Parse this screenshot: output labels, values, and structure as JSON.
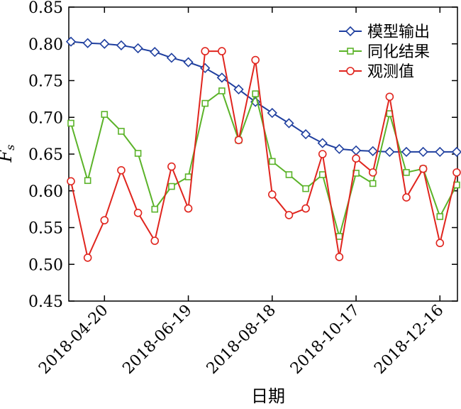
{
  "chart_data": {
    "type": "line",
    "xlabel": "日期",
    "ylabel": "Fs",
    "ylim": [
      0.45,
      0.85
    ],
    "y_ticks": [
      "0.45",
      "0.50",
      "0.55",
      "0.60",
      "0.65",
      "0.70",
      "0.75",
      "0.80",
      "0.85"
    ],
    "x_ticks": [
      "2018-04-20",
      "2018-06-19",
      "2018-08-18",
      "2018-10-17",
      "2018-12-16"
    ],
    "x_tick_index": [
      2,
      7,
      12,
      17,
      22
    ],
    "legend_position": "top-right",
    "series": [
      {
        "name": "模型输出",
        "color": "#1f3f9f",
        "marker": "diamond",
        "values": [
          0.803,
          0.801,
          0.8,
          0.798,
          0.794,
          0.789,
          0.781,
          0.775,
          0.767,
          0.754,
          0.738,
          0.721,
          0.706,
          0.692,
          0.677,
          0.665,
          0.657,
          0.655,
          0.654,
          0.653,
          0.653,
          0.653,
          0.653,
          0.653
        ]
      },
      {
        "name": "同化结果",
        "color": "#5bb329",
        "marker": "square",
        "values": [
          0.692,
          0.614,
          0.704,
          0.681,
          0.651,
          0.575,
          0.606,
          0.619,
          0.719,
          0.736,
          0.669,
          0.732,
          0.64,
          0.622,
          0.603,
          0.622,
          0.538,
          0.624,
          0.61,
          0.705,
          0.625,
          0.63,
          0.565,
          0.608
        ]
      },
      {
        "name": "观测值",
        "color": "#e0251e",
        "marker": "circle",
        "values": [
          0.613,
          0.509,
          0.56,
          0.628,
          0.57,
          0.532,
          0.633,
          0.576,
          0.79,
          0.79,
          0.669,
          0.778,
          0.595,
          0.567,
          0.576,
          0.65,
          0.51,
          0.644,
          0.625,
          0.728,
          0.591,
          0.63,
          0.529,
          0.625
        ]
      }
    ]
  }
}
